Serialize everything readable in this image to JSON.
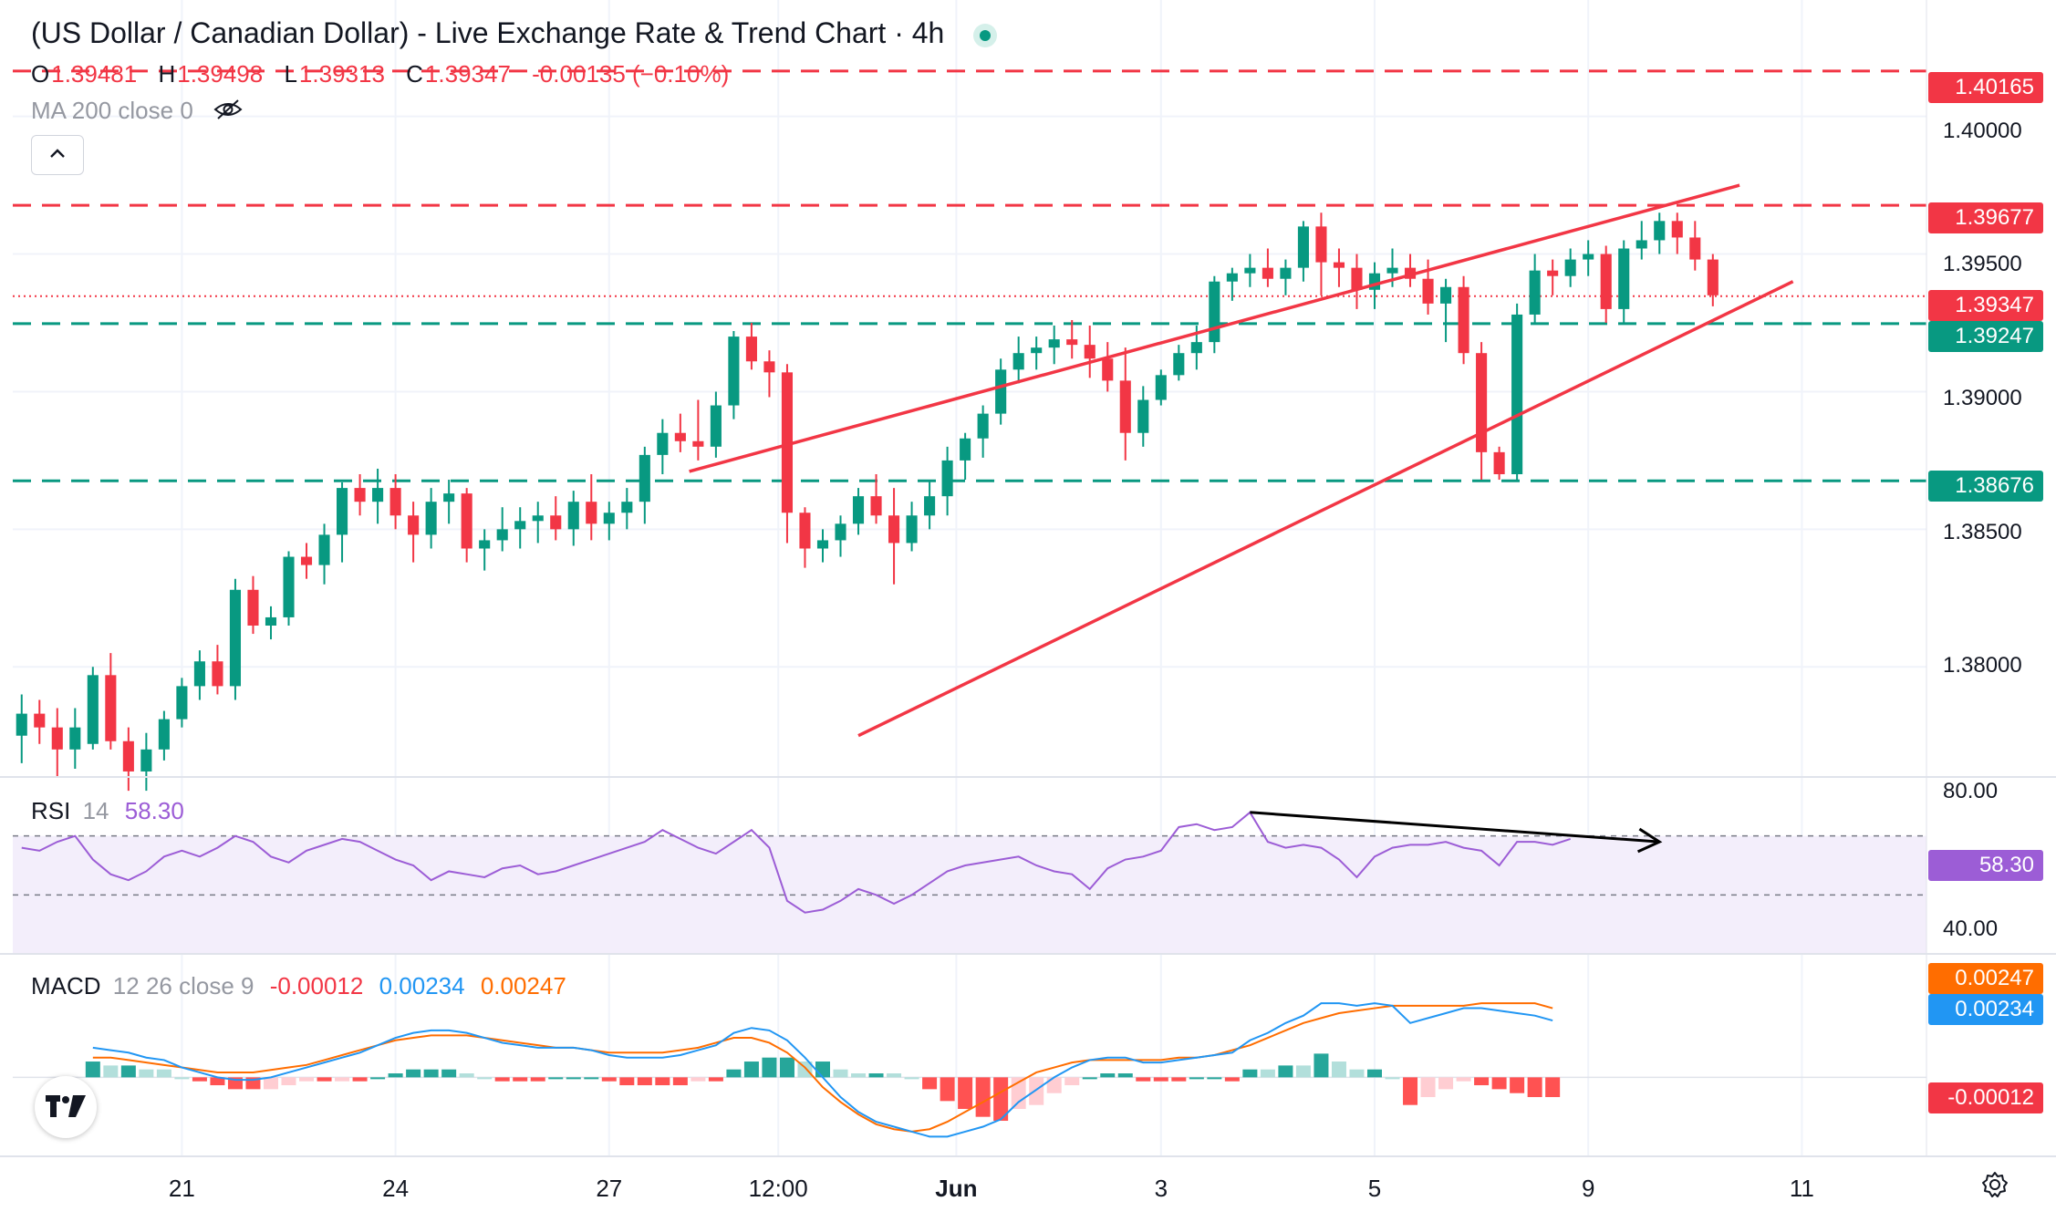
{
  "header": {
    "title": "(US Dollar / Canadian Dollar) - Live Exchange Rate & Trend Chart · 4h",
    "ohlc": [
      {
        "key": "O",
        "value": "1.39481"
      },
      {
        "key": "H",
        "value": "1.39498"
      },
      {
        "key": "L",
        "value": "1.39313"
      },
      {
        "key": "C",
        "value": "1.39347"
      }
    ],
    "change": "-0.00135 (−0.10%)",
    "ma_label": "MA 200 close 0"
  },
  "icons": {
    "status": "status-dot-icon",
    "eye": "eye-off-icon",
    "collapse": "chevron-up-icon",
    "logo": "tradingview-logo-icon",
    "settings": "gear-icon"
  },
  "colors": {
    "up": "#089981",
    "down": "#f23645",
    "trendline": "#f23645",
    "rsi": "#9c5dd6",
    "rsi_band": "#f3eefb",
    "macd": "#2196f3",
    "signal": "#ff6d00",
    "grid": "#f0f3fa"
  },
  "price_axis": {
    "ticks": [
      "1.40000",
      "1.39500",
      "1.39000",
      "1.38500",
      "1.38000"
    ],
    "tags": [
      {
        "label": "1.40165",
        "value": 1.40165,
        "color": "#f23645"
      },
      {
        "label": "1.39677",
        "value": 1.39677,
        "color": "#f23645"
      },
      {
        "label": "1.39347",
        "value": 1.39347,
        "color": "#f23645"
      },
      {
        "label": "1.39247",
        "value": 1.39247,
        "color": "#089981"
      },
      {
        "label": "1.38676",
        "value": 1.38676,
        "color": "#089981"
      }
    ]
  },
  "time_axis": {
    "ticks": [
      {
        "label": "21",
        "index": 9
      },
      {
        "label": "24",
        "index": 21
      },
      {
        "label": "27",
        "index": 33
      },
      {
        "label": "12:00",
        "index": 42.5
      },
      {
        "label": "Jun",
        "index": 52.5
      },
      {
        "label": "3",
        "index": 64
      },
      {
        "label": "5",
        "index": 76
      },
      {
        "label": "9",
        "index": 88
      },
      {
        "label": "11",
        "index": 100
      }
    ]
  },
  "rsi": {
    "label": "RSI",
    "period": "14",
    "value": "58.30",
    "ticks": [
      "80.00",
      "40.00"
    ]
  },
  "macd": {
    "label": "MACD",
    "params": "12 26 close 9",
    "hist": "-0.00012",
    "macd": "0.00234",
    "signal": "0.00247",
    "tags": [
      {
        "label": "0.00247",
        "color": "#ff6d00"
      },
      {
        "label": "0.00234",
        "color": "#2196f3"
      },
      {
        "label": "-0.00012",
        "color": "#f23645"
      }
    ]
  },
  "chart_data": {
    "type": "candlestick",
    "symbol": "USD/CAD",
    "interval": "4h",
    "ylim": [
      1.376,
      1.4035
    ],
    "candles": [
      [
        1.3775,
        1.379,
        1.3765,
        1.3783
      ],
      [
        1.3783,
        1.3788,
        1.3772,
        1.3778
      ],
      [
        1.3778,
        1.3785,
        1.376,
        1.377
      ],
      [
        1.377,
        1.3785,
        1.3763,
        1.3778
      ],
      [
        1.3772,
        1.38,
        1.377,
        1.3797
      ],
      [
        1.3797,
        1.3805,
        1.377,
        1.3773
      ],
      [
        1.3773,
        1.3778,
        1.3755,
        1.3762
      ],
      [
        1.3762,
        1.3776,
        1.3755,
        1.377
      ],
      [
        1.377,
        1.3784,
        1.3766,
        1.3781
      ],
      [
        1.3781,
        1.3796,
        1.3778,
        1.3793
      ],
      [
        1.3793,
        1.3806,
        1.3788,
        1.3802
      ],
      [
        1.3802,
        1.3808,
        1.379,
        1.3793
      ],
      [
        1.3793,
        1.3832,
        1.3788,
        1.3828
      ],
      [
        1.3828,
        1.3833,
        1.3812,
        1.3815
      ],
      [
        1.3815,
        1.3822,
        1.381,
        1.3818
      ],
      [
        1.3818,
        1.3842,
        1.3815,
        1.384
      ],
      [
        1.384,
        1.3845,
        1.3832,
        1.3837
      ],
      [
        1.3837,
        1.3852,
        1.383,
        1.3848
      ],
      [
        1.3848,
        1.3867,
        1.3838,
        1.3865
      ],
      [
        1.3865,
        1.387,
        1.3855,
        1.386
      ],
      [
        1.386,
        1.3872,
        1.3852,
        1.3865
      ],
      [
        1.3865,
        1.387,
        1.385,
        1.3855
      ],
      [
        1.3855,
        1.386,
        1.3838,
        1.3848
      ],
      [
        1.3848,
        1.3865,
        1.3843,
        1.386
      ],
      [
        1.386,
        1.3868,
        1.3852,
        1.3863
      ],
      [
        1.3863,
        1.3865,
        1.3838,
        1.3843
      ],
      [
        1.3843,
        1.385,
        1.3835,
        1.3846
      ],
      [
        1.3846,
        1.3858,
        1.3842,
        1.385
      ],
      [
        1.385,
        1.3858,
        1.3843,
        1.3853
      ],
      [
        1.3853,
        1.386,
        1.3845,
        1.3855
      ],
      [
        1.3855,
        1.3862,
        1.3846,
        1.385
      ],
      [
        1.385,
        1.3864,
        1.3844,
        1.386
      ],
      [
        1.386,
        1.387,
        1.3846,
        1.3852
      ],
      [
        1.3852,
        1.386,
        1.3846,
        1.3856
      ],
      [
        1.3856,
        1.3865,
        1.385,
        1.386
      ],
      [
        1.386,
        1.388,
        1.3852,
        1.3877
      ],
      [
        1.3877,
        1.389,
        1.387,
        1.3885
      ],
      [
        1.3885,
        1.3892,
        1.3878,
        1.3882
      ],
      [
        1.3882,
        1.3897,
        1.3875,
        1.388
      ],
      [
        1.388,
        1.39,
        1.3876,
        1.3895
      ],
      [
        1.3895,
        1.3922,
        1.389,
        1.392
      ],
      [
        1.392,
        1.3925,
        1.3908,
        1.3911
      ],
      [
        1.3911,
        1.3915,
        1.3898,
        1.3907
      ],
      [
        1.3907,
        1.391,
        1.3845,
        1.3856
      ],
      [
        1.3856,
        1.3858,
        1.3836,
        1.3843
      ],
      [
        1.3843,
        1.385,
        1.3838,
        1.3846
      ],
      [
        1.3846,
        1.3855,
        1.384,
        1.3852
      ],
      [
        1.3852,
        1.3865,
        1.3848,
        1.3862
      ],
      [
        1.3862,
        1.387,
        1.3852,
        1.3855
      ],
      [
        1.3855,
        1.3865,
        1.383,
        1.3845
      ],
      [
        1.3845,
        1.386,
        1.3842,
        1.3855
      ],
      [
        1.3855,
        1.3868,
        1.385,
        1.3862
      ],
      [
        1.3862,
        1.388,
        1.3855,
        1.3875
      ],
      [
        1.3875,
        1.3885,
        1.3868,
        1.3883
      ],
      [
        1.3883,
        1.3895,
        1.3876,
        1.3892
      ],
      [
        1.3892,
        1.3912,
        1.3888,
        1.3908
      ],
      [
        1.3908,
        1.392,
        1.3903,
        1.3914
      ],
      [
        1.3914,
        1.392,
        1.3908,
        1.3916
      ],
      [
        1.3916,
        1.3924,
        1.391,
        1.3919
      ],
      [
        1.3919,
        1.3926,
        1.3912,
        1.3917
      ],
      [
        1.3917,
        1.3924,
        1.3905,
        1.3912
      ],
      [
        1.3912,
        1.3918,
        1.39,
        1.3904
      ],
      [
        1.3904,
        1.3916,
        1.3875,
        1.3885
      ],
      [
        1.3885,
        1.3902,
        1.388,
        1.3897
      ],
      [
        1.3897,
        1.3908,
        1.3895,
        1.3906
      ],
      [
        1.3906,
        1.3917,
        1.3904,
        1.3914
      ],
      [
        1.3914,
        1.3924,
        1.3908,
        1.3918
      ],
      [
        1.3918,
        1.3942,
        1.3914,
        1.394
      ],
      [
        1.394,
        1.3945,
        1.3933,
        1.3943
      ],
      [
        1.3943,
        1.395,
        1.3938,
        1.3945
      ],
      [
        1.3945,
        1.3952,
        1.3938,
        1.3941
      ],
      [
        1.3941,
        1.3948,
        1.3935,
        1.3945
      ],
      [
        1.3945,
        1.3962,
        1.394,
        1.396
      ],
      [
        1.396,
        1.3965,
        1.3935,
        1.3947
      ],
      [
        1.3947,
        1.3952,
        1.3938,
        1.3945
      ],
      [
        1.3945,
        1.395,
        1.393,
        1.3937
      ],
      [
        1.3937,
        1.3947,
        1.393,
        1.3943
      ],
      [
        1.3943,
        1.3952,
        1.3938,
        1.3945
      ],
      [
        1.3945,
        1.395,
        1.3938,
        1.3941
      ],
      [
        1.3941,
        1.3948,
        1.3928,
        1.3932
      ],
      [
        1.3932,
        1.3941,
        1.3918,
        1.3938
      ],
      [
        1.3938,
        1.3942,
        1.391,
        1.3914
      ],
      [
        1.3914,
        1.3918,
        1.3868,
        1.3878
      ],
      [
        1.3878,
        1.388,
        1.3868,
        1.387
      ],
      [
        1.387,
        1.3932,
        1.3868,
        1.3928
      ],
      [
        1.3928,
        1.395,
        1.3925,
        1.3944
      ],
      [
        1.3944,
        1.3948,
        1.3935,
        1.3942
      ],
      [
        1.3942,
        1.3952,
        1.3938,
        1.3948
      ],
      [
        1.3948,
        1.3955,
        1.3942,
        1.395
      ],
      [
        1.395,
        1.3953,
        1.3925,
        1.393
      ],
      [
        1.393,
        1.3955,
        1.3925,
        1.3952
      ],
      [
        1.3952,
        1.3962,
        1.3948,
        1.3955
      ],
      [
        1.3955,
        1.3965,
        1.395,
        1.3962
      ],
      [
        1.3962,
        1.3965,
        1.395,
        1.3956
      ],
      [
        1.3956,
        1.3962,
        1.3944,
        1.3948
      ],
      [
        1.3948,
        1.395,
        1.3931,
        1.3935
      ]
    ],
    "horizontal_levels": [
      {
        "value": 1.40165,
        "style": "dashed",
        "color": "#f23645"
      },
      {
        "value": 1.39677,
        "style": "dashed",
        "color": "#f23645"
      },
      {
        "value": 1.39347,
        "style": "dotted",
        "color": "#f23645"
      },
      {
        "value": 1.39247,
        "style": "dashed",
        "color": "#089981"
      },
      {
        "value": 1.38676,
        "style": "dashed",
        "color": "#089981"
      }
    ],
    "trendlines": [
      {
        "name": "upper",
        "from": [
          37.5,
          1.3871
        ],
        "to": [
          96.5,
          1.3975
        ]
      },
      {
        "name": "lower",
        "from": [
          47,
          1.3775
        ],
        "to": [
          99.5,
          1.394
        ]
      }
    ],
    "rsi_values": [
      66,
      65,
      68,
      70,
      62,
      57,
      55,
      58,
      63,
      65,
      63,
      66,
      70,
      68,
      63,
      61,
      65,
      67,
      69,
      68,
      65,
      62,
      60,
      55,
      58,
      57,
      56,
      59,
      60,
      57,
      58,
      60,
      62,
      64,
      66,
      68,
      72,
      69,
      66,
      64,
      68,
      72,
      66,
      48,
      44,
      45,
      48,
      52,
      50,
      47,
      50,
      54,
      58,
      60,
      61,
      62,
      63,
      60,
      58,
      57,
      52,
      59,
      62,
      63,
      65,
      73,
      74,
      72,
      73,
      78,
      68,
      66,
      67,
      66,
      62,
      56,
      63,
      66,
      67,
      67,
      68,
      66,
      65,
      60,
      68,
      68,
      67,
      69
    ],
    "rsi_ylim": [
      30,
      90
    ],
    "rsi_levels": [
      70,
      50,
      30
    ],
    "rsi_divergence_arrow": {
      "from": [
        69,
        78
      ],
      "to": [
        92,
        68
      ]
    },
    "macd_values": [
      0.0012,
      0.0011,
      0.001,
      0.0008,
      0.0007,
      0.0004,
      0.0002,
      0.0,
      -0.0001,
      -0.0001,
      0.0,
      0.0002,
      0.0004,
      0.0006,
      0.0008,
      0.001,
      0.0013,
      0.0016,
      0.0018,
      0.0019,
      0.0019,
      0.0018,
      0.0016,
      0.0014,
      0.0013,
      0.0012,
      0.0012,
      0.0012,
      0.0011,
      0.0009,
      0.0008,
      0.0008,
      0.0008,
      0.0009,
      0.0011,
      0.0013,
      0.0018,
      0.002,
      0.0019,
      0.0015,
      0.0008,
      0.0,
      -0.0008,
      -0.0014,
      -0.0018,
      -0.002,
      -0.0022,
      -0.0024,
      -0.0024,
      -0.0022,
      -0.002,
      -0.0017,
      -0.001,
      -0.0005,
      0.0,
      0.0004,
      0.0007,
      0.0008,
      0.0008,
      0.0006,
      0.0006,
      0.0007,
      0.0008,
      0.0009,
      0.001,
      0.0015,
      0.0018,
      0.0022,
      0.0025,
      0.003,
      0.003,
      0.0029,
      0.003,
      0.0029,
      0.0022,
      0.0024,
      0.0026,
      0.0028,
      0.0028,
      0.0027,
      0.0026,
      0.0025,
      0.0023
    ],
    "signal_values": [
      0.0008,
      0.0008,
      0.0007,
      0.0006,
      0.0005,
      0.0004,
      0.0003,
      0.0002,
      0.0002,
      0.0002,
      0.0003,
      0.0004,
      0.0005,
      0.0007,
      0.0009,
      0.0011,
      0.0013,
      0.0015,
      0.0016,
      0.0017,
      0.0017,
      0.0017,
      0.0016,
      0.0015,
      0.0014,
      0.0013,
      0.0012,
      0.0012,
      0.0011,
      0.001,
      0.001,
      0.001,
      0.001,
      0.0011,
      0.0012,
      0.0014,
      0.0016,
      0.0016,
      0.0014,
      0.001,
      0.0004,
      -0.0004,
      -0.001,
      -0.0015,
      -0.0019,
      -0.0021,
      -0.0022,
      -0.0021,
      -0.0018,
      -0.0014,
      -0.001,
      -0.0006,
      -0.0002,
      0.0002,
      0.0004,
      0.0006,
      0.0007,
      0.0007,
      0.0007,
      0.0007,
      0.0007,
      0.0008,
      0.0008,
      0.0009,
      0.0011,
      0.0013,
      0.0016,
      0.0019,
      0.0022,
      0.0024,
      0.0026,
      0.0027,
      0.0028,
      0.0029,
      0.0029,
      0.0029,
      0.0029,
      0.0029,
      0.003,
      0.003,
      0.003,
      0.003,
      0.0028
    ],
    "macd_ylim": [
      -0.0032,
      0.005
    ],
    "bottom_row": {
      "first_index": 0,
      "visible_index_range": [
        -0.5,
        107
      ],
      "rsi_offset": 0,
      "macd_offset": 4
    }
  }
}
